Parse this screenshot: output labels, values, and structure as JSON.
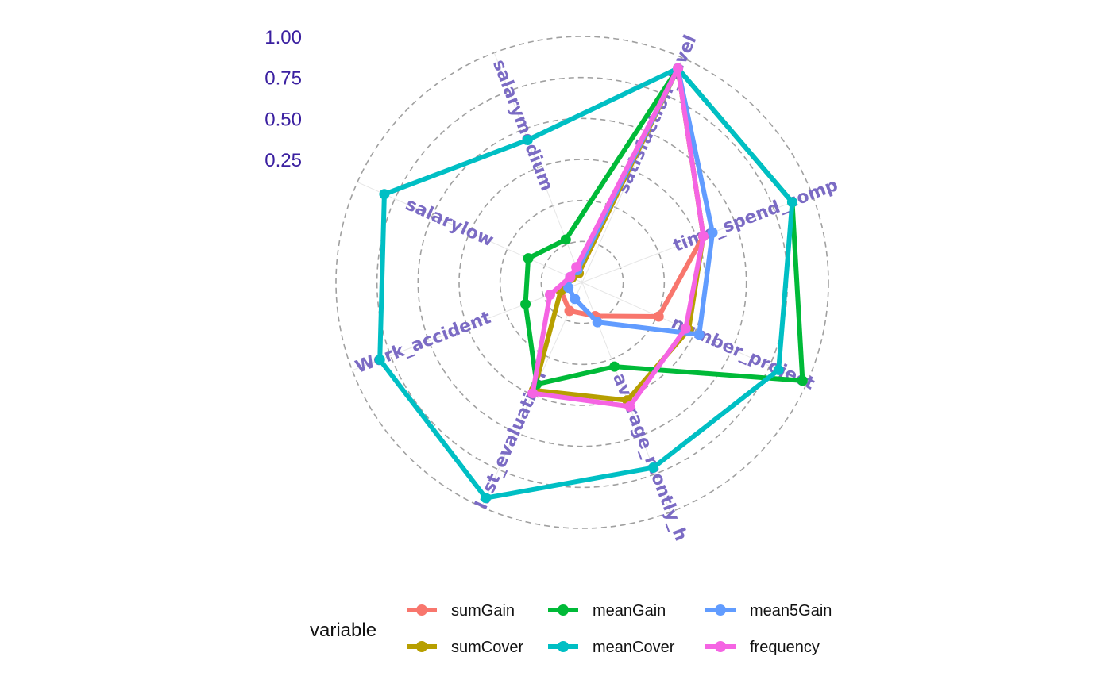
{
  "chart_data": {
    "type": "radar",
    "axes": [
      "satisfaction_level",
      "time_spend_comp",
      "number_project",
      "average_montly_h",
      "last_evaluation",
      "Work_accident",
      "salarylow",
      "salarymedium"
    ],
    "rlim": [
      -0.5,
      1.0
    ],
    "ticks": [
      0.25,
      0.5,
      0.75,
      1.0
    ],
    "tick_labels": [
      "0.25",
      "0.50",
      "0.75",
      "1.00"
    ],
    "grid": true,
    "legend": {
      "title": "variable",
      "position": "bottom",
      "entries": [
        "sumGain",
        "meanGain",
        "mean5Gain",
        "sumCover",
        "meanCover",
        "frequency"
      ]
    },
    "series": [
      {
        "name": "sumGain",
        "color": "#F8766D",
        "values": [
          0.93,
          0.29,
          0.01,
          -0.28,
          -0.31,
          -0.36,
          -0.43,
          -0.44
        ]
      },
      {
        "name": "sumCover",
        "color": "#B79F00",
        "values": [
          0.93,
          0.29,
          0.21,
          0.27,
          0.22,
          -0.36,
          -0.43,
          -0.44
        ]
      },
      {
        "name": "meanGain",
        "color": "#00BA38",
        "values": [
          0.93,
          0.87,
          0.97,
          0.05,
          0.18,
          -0.13,
          -0.14,
          -0.22
        ]
      },
      {
        "name": "meanCover",
        "color": "#00BFC4",
        "values": [
          0.93,
          0.87,
          0.81,
          0.71,
          0.94,
          0.82,
          0.82,
          0.43
        ]
      },
      {
        "name": "mean5Gain",
        "color": "#619CFF",
        "values": [
          0.93,
          0.35,
          0.28,
          -0.24,
          -0.39,
          -0.41,
          -0.42,
          -0.42
        ]
      },
      {
        "name": "frequency",
        "color": "#F564E3",
        "values": [
          0.93,
          0.29,
          0.19,
          0.31,
          0.24,
          -0.29,
          -0.42,
          -0.4
        ]
      }
    ]
  }
}
